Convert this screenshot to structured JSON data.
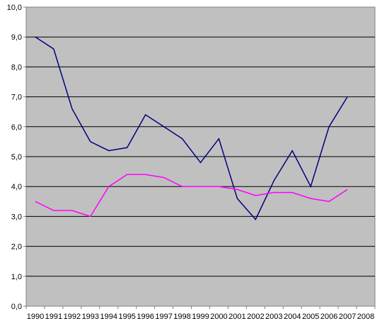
{
  "chart_data": {
    "type": "line",
    "title": "",
    "xlabel": "",
    "ylabel": "",
    "categories": [
      "1990",
      "1991",
      "1992",
      "1993",
      "1994",
      "1995",
      "1996",
      "1997",
      "1998",
      "1999",
      "2000",
      "2001",
      "2002",
      "2003",
      "2004",
      "2005",
      "2006",
      "2007",
      "2008"
    ],
    "y_ticks": [
      "0,0",
      "1,0",
      "2,0",
      "3,0",
      "4,0",
      "5,0",
      "6,0",
      "7,0",
      "8,0",
      "9,0",
      "10,0"
    ],
    "ylim": [
      0,
      10
    ],
    "grid": true,
    "legend": "none",
    "series": [
      {
        "color": "#000080",
        "values": [
          9.0,
          8.6,
          6.6,
          5.5,
          5.2,
          5.3,
          6.4,
          6.0,
          5.6,
          4.8,
          5.6,
          3.6,
          2.9,
          4.2,
          5.2,
          4.0,
          6.0,
          7.0,
          null
        ]
      },
      {
        "color": "#ff00ff",
        "values": [
          3.5,
          3.2,
          3.2,
          3.0,
          4.0,
          4.4,
          4.4,
          4.3,
          4.0,
          4.0,
          4.0,
          3.9,
          3.7,
          3.8,
          3.8,
          3.6,
          3.5,
          3.9,
          null
        ]
      }
    ]
  },
  "colors": {
    "plot_background": "#c0c0c0",
    "gridline": "#000000",
    "axis": "#808080"
  }
}
